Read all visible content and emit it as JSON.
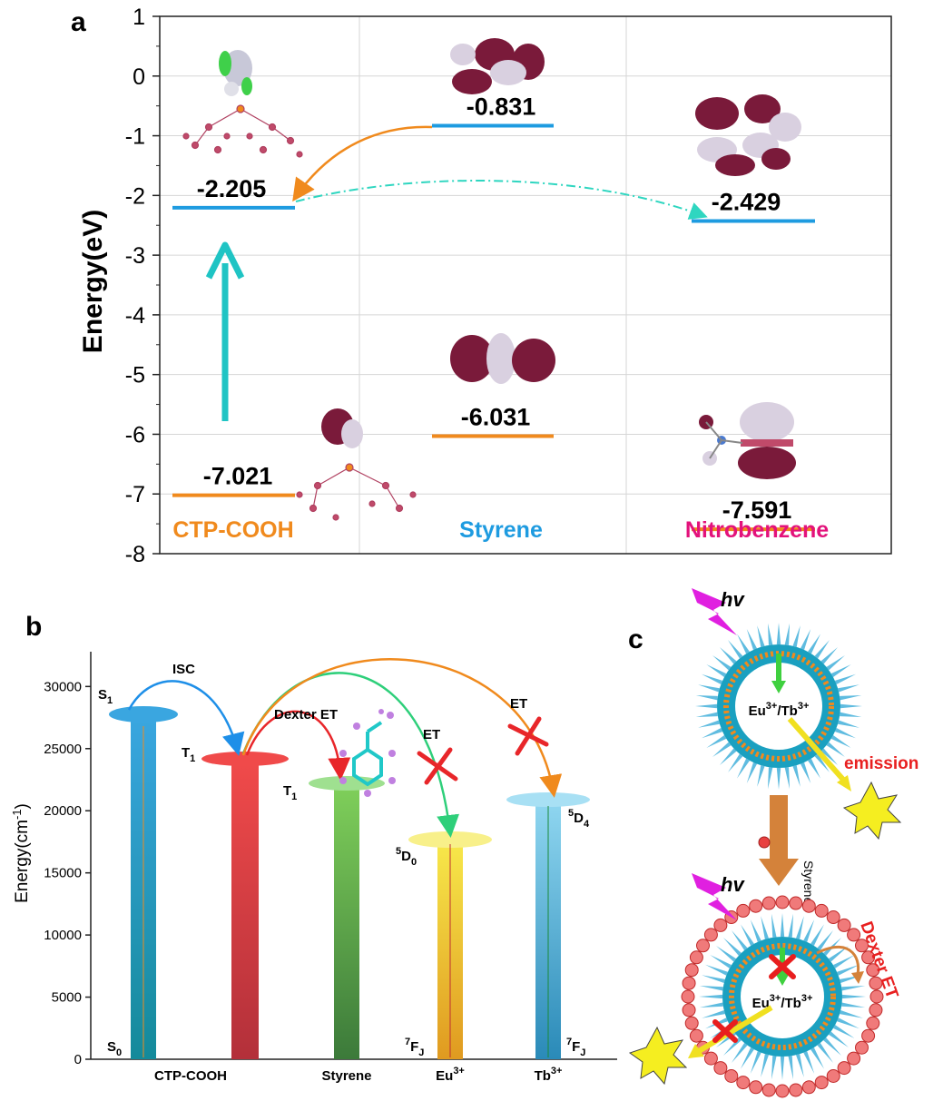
{
  "panel_a": {
    "panel_label": "a",
    "ylabel": "Energy(eV)",
    "yticks": [
      "1",
      "0",
      "-1",
      "-2",
      "-3",
      "-4",
      "-5",
      "-6",
      "-7",
      "-8"
    ],
    "lumo": [
      {
        "id": "ctp_lumo",
        "label": "-2.205",
        "value": -2.205,
        "color": "#1e9be0"
      },
      {
        "id": "sty_lumo",
        "label": "-0.831",
        "value": -0.831,
        "color": "#1e9be0"
      },
      {
        "id": "nb_lumo",
        "label": "-2.429",
        "value": -2.429,
        "color": "#1e9be0"
      }
    ],
    "homo": [
      {
        "id": "ctp_homo",
        "label": "-7.021",
        "value": -7.021,
        "color": "#f08a1d"
      },
      {
        "id": "sty_homo",
        "label": "-6.031",
        "value": -6.031,
        "color": "#f08a1d"
      },
      {
        "id": "nb_homo",
        "label": "-7.591",
        "value": -7.591,
        "color": "#f08a1d"
      }
    ],
    "molecules": [
      {
        "id": "ctp",
        "label": "CTP-COOH",
        "color": "#f08a1d"
      },
      {
        "id": "sty",
        "label": "Styrene",
        "color": "#1e9be0"
      },
      {
        "id": "nb",
        "label": "Nitrobenzene",
        "color": "#e3127b"
      }
    ],
    "colors": {
      "arrow_up": "#1fc4c4",
      "transfer": "#f08a1d",
      "dashed": "#2fd6c0",
      "lobe_dark": "#7a1a3a",
      "lobe_light": "#d9d0e0",
      "grid": "#d6d6d6"
    }
  },
  "panel_b": {
    "panel_label": "b",
    "ylabel": "Energy(cm",
    "ylabel_sup": "-1",
    "ylabel_end": ")",
    "yticks": [
      "30000",
      "25000",
      "20000",
      "15000",
      "10000",
      "5000",
      "0"
    ],
    "xlabels": [
      "CTP-COOH",
      "Styrene",
      "Eu",
      "Tb"
    ],
    "xlabel_sups": [
      "3+",
      "3+"
    ],
    "levels": {
      "S1": "S",
      "S1_sub": "1",
      "T1a": "T",
      "T1a_sub": "1",
      "T1b": "T",
      "T1b_sub": "1",
      "S0": "S",
      "S0_sub": "0",
      "D0_pre": "5",
      "D0": "D",
      "D0_sub": "0",
      "D4_pre": "5",
      "D4": "D",
      "D4_sub": "4",
      "F_pre": "7",
      "F": "F",
      "F_sub": "J"
    },
    "annotations": {
      "isc": "ISC",
      "dexter": "Dexter ET",
      "et1": "ET",
      "et2": "ET"
    },
    "level_energies": {
      "S1": 28000,
      "T1_ctp": 24300,
      "T1_sty": 22200,
      "D0_eu": 17800,
      "D4_tb": 21000
    }
  },
  "panel_c": {
    "panel_label": "c",
    "hv1": "hv",
    "hv2": "hv",
    "center1": "Eu",
    "center1_sup1": "3+",
    "center1_mid": "/Tb",
    "center1_sup2": "3+",
    "center2": "Eu",
    "center2_sup1": "3+",
    "center2_mid": "/Tb",
    "center2_sup2": "3+",
    "emission": "emission",
    "styrene": "Styrene",
    "dexter": "Dexter ET"
  }
}
